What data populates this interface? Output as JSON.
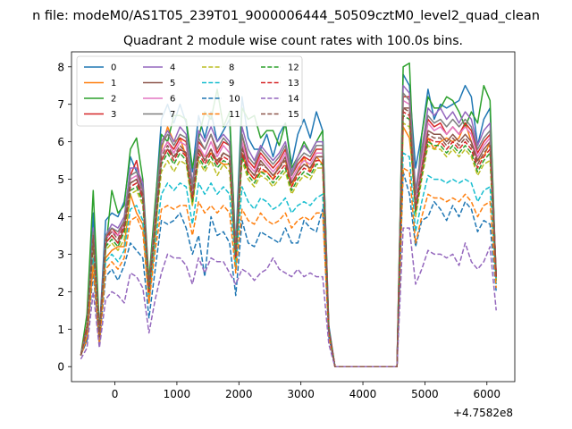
{
  "figure": {
    "suptitle": "n file: modeM0/AS1T05_239T01_9000006444_50509cztM0_level2_quad_clean"
  },
  "chart_data": {
    "type": "line",
    "title": "Quadrant 2 module wise count rates with 100.0s bins.",
    "xlabel": "",
    "ylabel": "",
    "x_offset_label": "+4.7582e8",
    "xlim": [
      -700,
      6450
    ],
    "ylim": [
      -0.4,
      8.4
    ],
    "x_ticks": [
      0,
      1000,
      2000,
      3000,
      4000,
      5000,
      6000
    ],
    "y_ticks": [
      0,
      1,
      2,
      3,
      4,
      5,
      6,
      7,
      8
    ],
    "grid": false,
    "legend_position": "upper-left",
    "legend_columns": 4,
    "x": [
      -550,
      -450,
      -350,
      -250,
      -150,
      -50,
      50,
      150,
      250,
      350,
      450,
      550,
      650,
      750,
      850,
      950,
      1050,
      1150,
      1250,
      1350,
      1450,
      1550,
      1650,
      1750,
      1850,
      1950,
      2050,
      2150,
      2250,
      2350,
      2450,
      2550,
      2650,
      2750,
      2850,
      2950,
      3050,
      3150,
      3250,
      3350,
      3450,
      3550,
      3650,
      3750,
      3850,
      3950,
      4050,
      4150,
      4250,
      4350,
      4450,
      4550,
      4650,
      4750,
      4850,
      4950,
      5050,
      5150,
      5250,
      5350,
      5450,
      5550,
      5650,
      5750,
      5850,
      5950,
      6050,
      6150
    ],
    "series": [
      {
        "name": "0",
        "color": "#1f77b4",
        "dash": "solid",
        "values": [
          0.3,
          0.8,
          4.1,
          0.9,
          3.9,
          4.1,
          4.0,
          4.4,
          5.6,
          5.2,
          4.8,
          2.2,
          4.3,
          6.6,
          7.0,
          6.5,
          7.0,
          6.5,
          5.2,
          6.7,
          6.1,
          6.8,
          6.0,
          6.3,
          6.6,
          3.2,
          7.2,
          6.1,
          5.8,
          5.8,
          6.2,
          5.6,
          6.2,
          6.5,
          5.4,
          6.2,
          6.6,
          6.1,
          6.8,
          6.3,
          1.1,
          0.0,
          0.0,
          0.0,
          0.0,
          0.0,
          0.0,
          0.0,
          0.0,
          0.0,
          0.0,
          0.0,
          7.8,
          7.5,
          5.3,
          6.2,
          7.4,
          6.6,
          7.0,
          6.9,
          7.0,
          7.1,
          7.5,
          7.2,
          5.9,
          6.6,
          6.9,
          2.3
        ]
      },
      {
        "name": "1",
        "color": "#ff7f0e",
        "dash": "solid",
        "values": [
          0.3,
          0.7,
          2.8,
          0.6,
          2.9,
          3.1,
          3.2,
          3.2,
          4.6,
          4.1,
          3.8,
          1.7,
          3.4,
          5.8,
          6.4,
          6.0,
          6.1,
          5.6,
          4.3,
          5.8,
          5.6,
          5.7,
          5.5,
          5.4,
          5.4,
          3.0,
          5.7,
          5.2,
          5.0,
          5.2,
          5.2,
          5.0,
          5.4,
          5.5,
          4.8,
          5.2,
          5.6,
          5.2,
          5.6,
          5.4,
          0.9,
          0.0,
          0.0,
          0.0,
          0.0,
          0.0,
          0.0,
          0.0,
          0.0,
          0.0,
          0.0,
          0.0,
          6.4,
          6.1,
          4.5,
          5.3,
          6.1,
          5.8,
          6.0,
          6.1,
          6.0,
          6.1,
          6.5,
          6.0,
          5.5,
          5.6,
          6.0,
          2.4
        ]
      },
      {
        "name": "2",
        "color": "#2ca02c",
        "dash": "solid",
        "values": [
          0.3,
          1.4,
          4.7,
          1.0,
          3.1,
          4.7,
          4.1,
          4.3,
          5.8,
          6.1,
          5.0,
          2.3,
          4.4,
          6.2,
          6.0,
          6.7,
          6.7,
          6.6,
          5.3,
          6.1,
          6.8,
          6.6,
          7.4,
          6.4,
          6.8,
          3.0,
          6.9,
          6.6,
          6.7,
          6.1,
          6.3,
          6.3,
          5.9,
          6.5,
          5.3,
          5.6,
          6.0,
          5.7,
          6.0,
          6.3,
          1.0,
          0.0,
          0.0,
          0.0,
          0.0,
          0.0,
          0.0,
          0.0,
          0.0,
          0.0,
          0.0,
          0.0,
          8.0,
          8.1,
          4.2,
          6.2,
          7.2,
          6.9,
          6.9,
          7.2,
          7.1,
          6.8,
          6.4,
          6.8,
          6.5,
          7.5,
          7.1,
          2.3
        ]
      },
      {
        "name": "3",
        "color": "#d62728",
        "dash": "solid",
        "values": [
          0.3,
          1.1,
          3.6,
          0.9,
          3.4,
          3.7,
          3.5,
          3.9,
          5.1,
          5.5,
          4.6,
          2.1,
          4.0,
          5.7,
          6.0,
          5.8,
          6.1,
          6.0,
          4.7,
          6.0,
          5.8,
          6.2,
          5.7,
          6.0,
          5.9,
          3.0,
          6.2,
          5.5,
          5.3,
          5.7,
          5.5,
          5.3,
          5.5,
          5.8,
          5.1,
          5.4,
          5.6,
          5.5,
          5.8,
          5.8,
          1.0,
          0.0,
          0.0,
          0.0,
          0.0,
          0.0,
          0.0,
          0.0,
          0.0,
          0.0,
          0.0,
          0.0,
          7.2,
          7.2,
          4.5,
          5.6,
          6.6,
          6.4,
          6.5,
          6.2,
          6.4,
          6.2,
          6.5,
          6.3,
          5.7,
          6.0,
          6.2,
          2.5
        ]
      },
      {
        "name": "4",
        "color": "#9467bd",
        "dash": "solid",
        "values": [
          0.3,
          1.0,
          3.7,
          0.8,
          3.5,
          3.8,
          3.7,
          4.0,
          5.3,
          5.3,
          4.9,
          2.1,
          4.1,
          6.0,
          6.3,
          6.0,
          6.4,
          6.2,
          4.9,
          6.3,
          6.0,
          6.4,
          6.0,
          6.2,
          6.0,
          3.1,
          6.4,
          5.8,
          5.5,
          5.9,
          5.7,
          5.5,
          5.7,
          6.0,
          5.2,
          5.6,
          5.9,
          5.7,
          6.0,
          6.0,
          1.0,
          0.0,
          0.0,
          0.0,
          0.0,
          0.0,
          0.0,
          0.0,
          0.0,
          0.0,
          0.0,
          0.0,
          7.5,
          7.3,
          4.7,
          5.8,
          6.9,
          6.7,
          6.9,
          6.6,
          6.8,
          6.5,
          6.8,
          6.6,
          5.9,
          6.3,
          6.5,
          2.4
        ]
      },
      {
        "name": "5",
        "color": "#8c564b",
        "dash": "solid",
        "values": [
          0.3,
          1.0,
          3.4,
          0.8,
          3.3,
          3.5,
          3.3,
          3.7,
          4.9,
          5.0,
          4.5,
          2.0,
          3.8,
          5.5,
          5.8,
          5.6,
          5.8,
          5.7,
          4.5,
          5.8,
          5.5,
          5.8,
          5.4,
          5.7,
          5.6,
          2.9,
          5.9,
          5.3,
          5.1,
          5.5,
          5.3,
          5.1,
          5.3,
          5.6,
          4.9,
          5.2,
          5.4,
          5.3,
          5.6,
          5.6,
          1.0,
          0.0,
          0.0,
          0.0,
          0.0,
          0.0,
          0.0,
          0.0,
          0.0,
          0.0,
          0.0,
          0.0,
          6.9,
          6.9,
          4.3,
          5.4,
          6.3,
          6.2,
          6.2,
          6.0,
          6.2,
          6.0,
          6.2,
          6.0,
          5.5,
          5.8,
          6.0,
          2.4
        ]
      },
      {
        "name": "6",
        "color": "#e377c2",
        "dash": "solid",
        "values": [
          0.3,
          1.0,
          3.5,
          0.8,
          3.4,
          3.6,
          3.5,
          3.8,
          5.0,
          5.1,
          4.6,
          2.0,
          3.9,
          5.7,
          6.0,
          5.7,
          6.0,
          5.9,
          4.6,
          5.9,
          5.6,
          6.0,
          5.6,
          5.9,
          5.7,
          3.0,
          6.0,
          5.4,
          5.2,
          5.6,
          5.4,
          5.2,
          5.4,
          5.7,
          5.0,
          5.3,
          5.5,
          5.4,
          5.7,
          5.7,
          1.0,
          0.0,
          0.0,
          0.0,
          0.0,
          0.0,
          0.0,
          0.0,
          0.0,
          0.0,
          0.0,
          0.0,
          7.1,
          7.0,
          4.4,
          5.5,
          6.5,
          6.3,
          6.4,
          6.2,
          6.4,
          6.2,
          6.4,
          6.2,
          5.6,
          5.9,
          6.1,
          2.4
        ]
      },
      {
        "name": "7",
        "color": "#7f7f7f",
        "dash": "solid",
        "values": [
          0.3,
          1.0,
          3.6,
          0.8,
          3.5,
          3.7,
          3.6,
          3.9,
          5.1,
          5.2,
          4.7,
          2.1,
          4.0,
          5.9,
          6.2,
          5.9,
          6.2,
          6.1,
          4.8,
          6.1,
          5.8,
          6.2,
          5.8,
          6.1,
          5.9,
          3.1,
          6.2,
          5.6,
          5.4,
          5.8,
          5.6,
          5.4,
          5.6,
          5.9,
          5.1,
          5.5,
          5.7,
          5.6,
          5.9,
          5.9,
          1.0,
          0.0,
          0.0,
          0.0,
          0.0,
          0.0,
          0.0,
          0.0,
          0.0,
          0.0,
          0.0,
          0.0,
          7.3,
          7.1,
          4.6,
          5.7,
          6.7,
          6.5,
          6.6,
          6.4,
          6.6,
          6.4,
          6.6,
          6.4,
          5.8,
          6.1,
          6.3,
          2.4
        ]
      },
      {
        "name": "8",
        "color": "#bcbd22",
        "dash": "dashed",
        "values": [
          0.3,
          0.9,
          3.2,
          0.7,
          3.1,
          3.3,
          3.1,
          3.4,
          4.6,
          4.7,
          4.3,
          1.9,
          3.6,
          5.2,
          5.5,
          5.2,
          5.5,
          5.4,
          4.3,
          5.5,
          5.2,
          5.5,
          5.1,
          5.4,
          5.2,
          2.8,
          5.5,
          5.0,
          4.8,
          5.1,
          5.0,
          4.8,
          5.0,
          5.2,
          4.6,
          4.9,
          5.1,
          5.0,
          5.3,
          5.3,
          0.9,
          0.0,
          0.0,
          0.0,
          0.0,
          0.0,
          0.0,
          0.0,
          0.0,
          0.0,
          0.0,
          0.0,
          6.5,
          6.4,
          4.0,
          5.0,
          5.9,
          5.8,
          5.8,
          5.6,
          5.8,
          5.6,
          5.8,
          5.6,
          5.1,
          5.4,
          5.5,
          2.3
        ]
      },
      {
        "name": "9",
        "color": "#17becf",
        "dash": "dashed",
        "values": [
          0.3,
          0.8,
          2.9,
          0.7,
          2.8,
          3.0,
          2.8,
          3.1,
          4.2,
          4.3,
          3.9,
          1.8,
          3.3,
          4.6,
          4.9,
          4.7,
          4.9,
          4.8,
          3.8,
          4.9,
          4.6,
          4.9,
          4.6,
          4.8,
          4.6,
          2.6,
          4.8,
          4.4,
          4.2,
          4.5,
          4.4,
          4.2,
          4.3,
          4.5,
          4.1,
          4.3,
          4.4,
          4.3,
          4.5,
          4.6,
          0.9,
          0.0,
          0.0,
          0.0,
          0.0,
          0.0,
          0.0,
          0.0,
          0.0,
          0.0,
          0.0,
          0.0,
          5.7,
          5.6,
          3.6,
          4.4,
          5.1,
          5.0,
          5.0,
          4.9,
          5.0,
          4.9,
          5.0,
          4.9,
          4.4,
          4.7,
          4.8,
          2.2
        ]
      },
      {
        "name": "10",
        "color": "#1f77b4",
        "dash": "dashed",
        "values": [
          0.3,
          0.7,
          2.5,
          0.6,
          2.4,
          2.6,
          2.3,
          2.7,
          3.3,
          3.1,
          2.9,
          1.3,
          2.6,
          3.9,
          3.8,
          3.9,
          4.1,
          3.7,
          3.0,
          3.5,
          2.4,
          4.0,
          3.5,
          3.6,
          3.3,
          1.9,
          3.9,
          3.3,
          3.2,
          3.6,
          3.5,
          3.4,
          3.3,
          3.7,
          3.3,
          3.3,
          3.9,
          3.7,
          3.6,
          4.2,
          0.8,
          0.0,
          0.0,
          0.0,
          0.0,
          0.0,
          0.0,
          0.0,
          0.0,
          0.0,
          0.0,
          0.0,
          5.2,
          4.6,
          3.2,
          3.9,
          4.0,
          4.4,
          4.2,
          3.9,
          4.3,
          4.0,
          4.4,
          4.2,
          3.6,
          3.9,
          3.8,
          2.0
        ]
      },
      {
        "name": "11",
        "color": "#ff7f0e",
        "dash": "dashed",
        "values": [
          0.3,
          0.8,
          2.7,
          0.6,
          2.6,
          2.8,
          2.6,
          2.9,
          3.9,
          4.0,
          3.6,
          1.7,
          3.1,
          4.2,
          4.3,
          4.2,
          4.3,
          4.3,
          3.5,
          4.4,
          4.1,
          4.3,
          4.1,
          4.3,
          4.1,
          2.5,
          4.2,
          3.9,
          3.8,
          4.1,
          3.9,
          3.8,
          3.9,
          4.1,
          3.7,
          3.9,
          4.0,
          3.9,
          4.1,
          4.1,
          0.8,
          0.0,
          0.0,
          0.0,
          0.0,
          0.0,
          0.0,
          0.0,
          0.0,
          0.0,
          0.0,
          0.0,
          5.3,
          5.2,
          3.3,
          4.0,
          4.6,
          4.5,
          4.5,
          4.4,
          4.5,
          4.4,
          4.6,
          4.4,
          4.0,
          4.3,
          4.4,
          2.1
        ]
      },
      {
        "name": "12",
        "color": "#2ca02c",
        "dash": "dashed",
        "values": [
          0.3,
          1.0,
          3.3,
          0.8,
          3.2,
          3.4,
          3.2,
          3.6,
          4.7,
          4.8,
          4.4,
          2.0,
          3.7,
          5.4,
          5.7,
          5.4,
          5.7,
          5.5,
          4.4,
          5.6,
          5.3,
          5.6,
          5.3,
          5.5,
          5.4,
          2.9,
          5.6,
          5.1,
          4.9,
          5.2,
          5.1,
          4.9,
          5.1,
          5.3,
          4.7,
          5.0,
          5.2,
          5.1,
          5.4,
          5.4,
          1.0,
          0.0,
          0.0,
          0.0,
          0.0,
          0.0,
          0.0,
          0.0,
          0.0,
          0.0,
          0.0,
          0.0,
          6.7,
          6.6,
          4.1,
          5.1,
          6.0,
          5.9,
          5.9,
          5.7,
          5.9,
          5.7,
          5.9,
          5.7,
          5.2,
          5.5,
          5.7,
          2.4
        ]
      },
      {
        "name": "13",
        "color": "#d62728",
        "dash": "dashed",
        "values": [
          0.3,
          1.0,
          3.4,
          0.8,
          3.3,
          3.5,
          3.3,
          3.7,
          4.8,
          4.9,
          4.5,
          2.0,
          3.8,
          5.5,
          5.8,
          5.5,
          5.8,
          5.6,
          4.5,
          5.7,
          5.4,
          5.7,
          5.4,
          5.6,
          5.5,
          2.9,
          5.7,
          5.2,
          5.0,
          5.3,
          5.2,
          5.0,
          5.2,
          5.4,
          4.8,
          5.1,
          5.3,
          5.2,
          5.5,
          5.5,
          1.0,
          0.0,
          0.0,
          0.0,
          0.0,
          0.0,
          0.0,
          0.0,
          0.0,
          0.0,
          0.0,
          0.0,
          6.8,
          6.7,
          4.2,
          5.2,
          6.1,
          6.0,
          6.0,
          5.8,
          6.0,
          5.8,
          6.0,
          5.8,
          5.3,
          5.6,
          5.8,
          2.4
        ]
      },
      {
        "name": "14",
        "color": "#9467bd",
        "dash": "dashed",
        "values": [
          0.2,
          0.5,
          2.0,
          0.5,
          1.8,
          2.0,
          1.9,
          1.7,
          2.5,
          2.4,
          2.1,
          0.9,
          1.8,
          2.5,
          3.0,
          2.9,
          2.9,
          2.7,
          2.2,
          2.9,
          2.5,
          2.9,
          2.8,
          2.8,
          2.5,
          2.2,
          2.6,
          2.5,
          2.3,
          2.5,
          2.6,
          2.9,
          2.6,
          2.5,
          2.4,
          2.6,
          2.4,
          2.5,
          2.4,
          2.4,
          0.6,
          0.0,
          0.0,
          0.0,
          0.0,
          0.0,
          0.0,
          0.0,
          0.0,
          0.0,
          0.0,
          0.0,
          3.7,
          3.7,
          2.2,
          2.6,
          3.1,
          3.0,
          3.0,
          2.9,
          3.0,
          2.7,
          3.3,
          2.8,
          2.6,
          2.8,
          3.2,
          1.5
        ]
      },
      {
        "name": "15",
        "color": "#8c564b",
        "dash": "dashed",
        "values": [
          0.3,
          1.0,
          3.5,
          0.8,
          3.4,
          3.6,
          3.4,
          3.8,
          4.9,
          5.0,
          4.6,
          2.1,
          3.9,
          5.6,
          5.9,
          5.6,
          5.9,
          5.7,
          4.6,
          5.8,
          5.5,
          5.8,
          5.5,
          5.7,
          5.6,
          3.0,
          5.8,
          5.3,
          5.1,
          5.4,
          5.3,
          5.1,
          5.3,
          5.5,
          4.9,
          5.2,
          5.4,
          5.3,
          5.6,
          5.6,
          1.0,
          0.0,
          0.0,
          0.0,
          0.0,
          0.0,
          0.0,
          0.0,
          0.0,
          0.0,
          0.0,
          0.0,
          6.9,
          6.8,
          4.3,
          5.3,
          6.2,
          6.1,
          6.1,
          5.9,
          6.1,
          5.9,
          6.1,
          5.9,
          5.4,
          5.7,
          5.9,
          2.4
        ]
      }
    ]
  }
}
